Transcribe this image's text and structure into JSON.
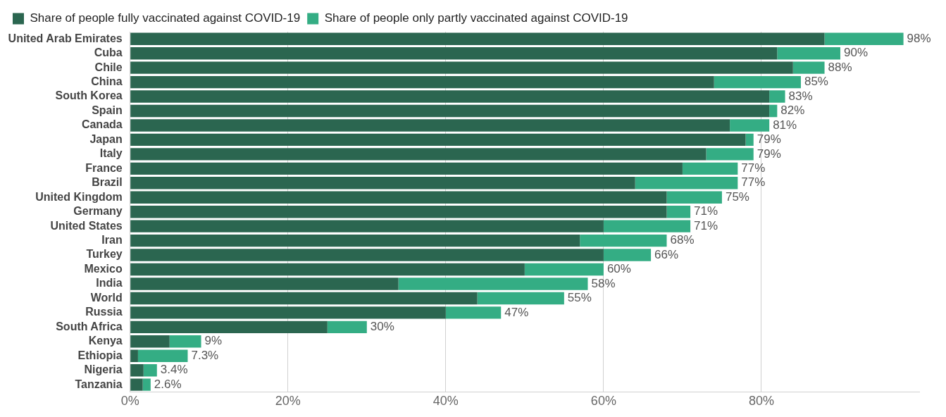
{
  "chart_data": {
    "type": "bar",
    "orientation": "horizontal",
    "stacked": true,
    "categories": [
      "United Arab Emirates",
      "Cuba",
      "Chile",
      "China",
      "South Korea",
      "Spain",
      "Canada",
      "Japan",
      "Italy",
      "France",
      "Brazil",
      "United Kingdom",
      "Germany",
      "United States",
      "Iran",
      "Turkey",
      "Mexico",
      "India",
      "World",
      "Russia",
      "South Africa",
      "Kenya",
      "Ethiopia",
      "Nigeria",
      "Tanzania"
    ],
    "series": [
      {
        "name": "Share of people fully vaccinated against COVID-19",
        "color": "#2b6650",
        "values": [
          88,
          82,
          84,
          74,
          81,
          81,
          76,
          78,
          73,
          70,
          64,
          68,
          68,
          60,
          57,
          60,
          50,
          34,
          44,
          40,
          25,
          5,
          1,
          1.7,
          1.6
        ]
      },
      {
        "name": "Share of people only partly vaccinated against COVID-19",
        "color": "#34ad84",
        "values": [
          10,
          8,
          4,
          11,
          2,
          1,
          5,
          1,
          6,
          7,
          13,
          7,
          3,
          11,
          11,
          6,
          10,
          24,
          11,
          7,
          5,
          4,
          6.3,
          1.7,
          1
        ]
      }
    ],
    "totals": [
      "98%",
      "90%",
      "88%",
      "85%",
      "83%",
      "82%",
      "81%",
      "79%",
      "79%",
      "77%",
      "77%",
      "75%",
      "71%",
      "71%",
      "68%",
      "66%",
      "60%",
      "58%",
      "55%",
      "47%",
      "30%",
      "9%",
      "7.3%",
      "3.4%",
      "2.6%"
    ],
    "xlim": [
      0,
      100
    ],
    "xticks": [
      {
        "value": 0,
        "label": "0%"
      },
      {
        "value": 20,
        "label": "20%"
      },
      {
        "value": 40,
        "label": "40%"
      },
      {
        "value": 60,
        "label": "60%"
      },
      {
        "value": 80,
        "label": "80%"
      }
    ],
    "grid": "x",
    "legend": "top left"
  }
}
